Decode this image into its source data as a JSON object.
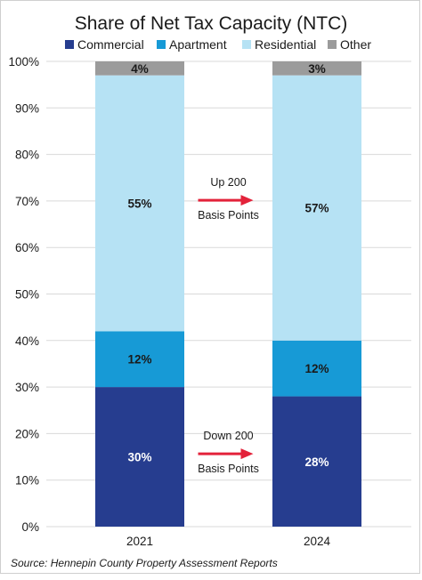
{
  "colors": {
    "Commercial": "#263d8f",
    "Apartment": "#179ad6",
    "Residential": "#b6e2f4",
    "Other": "#9b9b9b",
    "arrow": "#e3223a",
    "grid": "#d9d9d9"
  },
  "source": "Source: Hennepin County Property Assessment Reports",
  "annotations": [
    {
      "line1": "Up 200",
      "line2": "Basis Points",
      "series": "Residential"
    },
    {
      "line1": "Down 200",
      "line2": "Basis Points",
      "series": "Commercial"
    }
  ],
  "chart_data": {
    "type": "bar",
    "stacked": true,
    "title": "Share of Net Tax Capacity (NTC)",
    "categories": [
      "2021",
      "2024"
    ],
    "series": [
      {
        "name": "Commercial",
        "values": [
          30,
          28
        ],
        "labels": [
          "30%",
          "28%"
        ]
      },
      {
        "name": "Apartment",
        "values": [
          12,
          12
        ],
        "labels": [
          "12%",
          "12%"
        ]
      },
      {
        "name": "Residential",
        "values": [
          55,
          57
        ],
        "labels": [
          "55%",
          "57%"
        ]
      },
      {
        "name": "Other",
        "values": [
          4,
          3
        ],
        "labels": [
          "4%",
          "3%"
        ]
      }
    ],
    "ylim": [
      0,
      100
    ],
    "yticks": [
      "0%",
      "10%",
      "20%",
      "30%",
      "40%",
      "50%",
      "60%",
      "70%",
      "80%",
      "90%",
      "100%"
    ],
    "grid": true,
    "legend": "top"
  }
}
